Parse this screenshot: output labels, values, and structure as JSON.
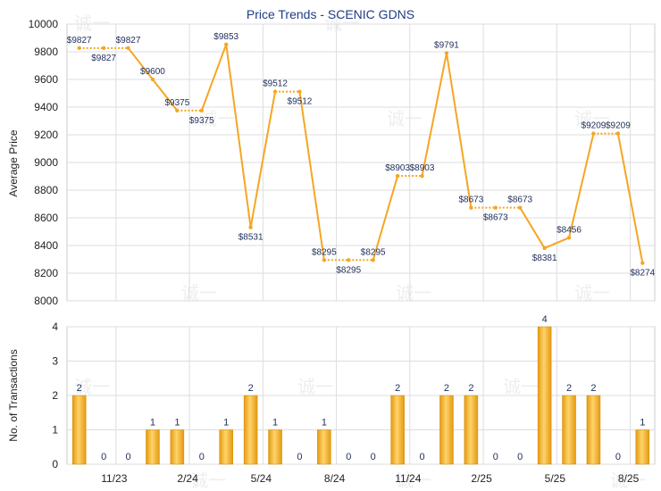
{
  "chart_data": [
    {
      "type": "line",
      "title": "Price Trends - SCENIC GDNS",
      "ylabel": "Average Price",
      "ylim": [
        8000,
        10000
      ],
      "yticks": [
        8000,
        8200,
        8400,
        8600,
        8800,
        9000,
        9200,
        9400,
        9600,
        9800,
        10000
      ],
      "grid": true,
      "series": [
        {
          "values": [
            9827,
            9827,
            9827,
            9600,
            9375,
            9375,
            9853,
            8531,
            9512,
            9512,
            8295,
            8295,
            8295,
            8903,
            8903,
            9791,
            8673,
            8673,
            8673,
            8381,
            8456,
            9209,
            9209,
            8274
          ],
          "labels": [
            "$9827",
            "$9827",
            "$9827",
            "$9600",
            "$9375",
            "$9375",
            "$9853",
            "$8531",
            "$9512",
            "$9512",
            "$8295",
            "$8295",
            "$8295",
            "$8903",
            "$8903",
            "$9791",
            "$8673",
            "$8673",
            "$8673",
            "$8381",
            "$8456",
            "$9209",
            "$9209",
            "$8274"
          ],
          "dotted_segments_after_index": [
            0,
            1,
            4,
            8,
            10,
            11,
            13,
            16,
            17,
            21
          ],
          "color": "#f5a623"
        }
      ]
    },
    {
      "type": "bar",
      "ylabel": "No. of Transactions",
      "ylim": [
        0,
        4
      ],
      "yticks": [
        0,
        1,
        2,
        3,
        4
      ],
      "values": [
        2,
        0,
        0,
        1,
        1,
        0,
        1,
        2,
        1,
        0,
        1,
        0,
        0,
        2,
        0,
        2,
        2,
        0,
        0,
        4,
        2,
        2,
        0,
        1
      ],
      "color": "#f0a820"
    }
  ],
  "x_axis": {
    "tick_labels": [
      "11/23",
      "2/24",
      "5/24",
      "8/24",
      "11/24",
      "2/25",
      "5/25",
      "8/25"
    ],
    "tick_after_index": [
      1,
      4,
      7,
      10,
      13,
      16,
      19,
      22
    ]
  },
  "watermark_text": "诚一"
}
